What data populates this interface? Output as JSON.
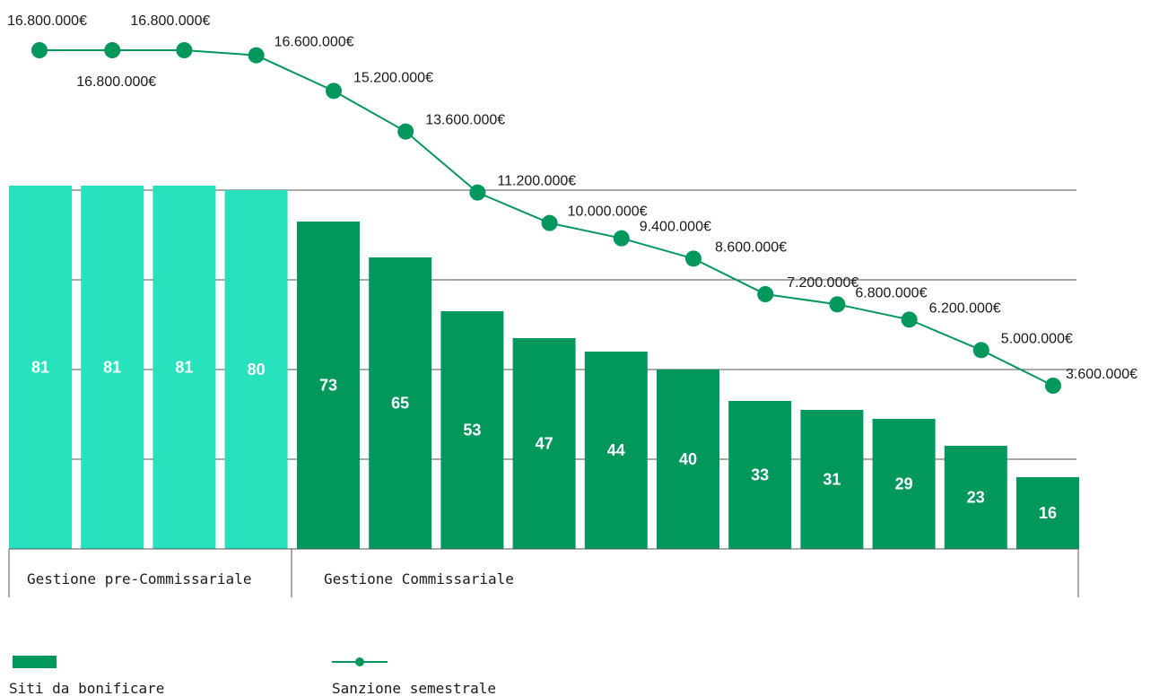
{
  "chart_data": {
    "type": "bar+line",
    "title": "",
    "xlabel": "",
    "ylabel": "",
    "grid": true,
    "bars": {
      "name": "Siti da bonificare",
      "values": [
        81,
        81,
        81,
        80,
        73,
        65,
        53,
        47,
        44,
        40,
        33,
        31,
        29,
        23,
        16
      ],
      "group_index": [
        0,
        0,
        0,
        0,
        1,
        1,
        1,
        1,
        1,
        1,
        1,
        1,
        1,
        1,
        1
      ],
      "ylim": [
        0,
        100
      ]
    },
    "line": {
      "name": "Sanzione semestrale",
      "values": [
        16800000,
        16800000,
        16800000,
        16600000,
        15200000,
        13600000,
        11200000,
        10000000,
        9400000,
        8600000,
        7200000,
        6800000,
        6200000,
        5000000,
        3600000
      ],
      "labels": [
        "16.800.000€",
        "16.800.000€",
        "16.800.000€",
        "16.600.000€",
        "15.200.000€",
        "13.600.000€",
        "11.200.000€",
        "10.000.000€",
        "9.400.000€",
        "8.600.000€",
        "7.200.000€",
        "6.800.000€",
        "6.200.000€",
        "5.000.000€",
        "3.600.000€"
      ]
    },
    "groups": [
      "Gestione pre-Commissariale",
      "Gestione Commissariale"
    ],
    "colors": {
      "bar_pre": "#28e2be",
      "bar_comm": "#02975c",
      "line": "#02975c",
      "grid": "#555555"
    },
    "legend": [
      {
        "label": "Siti da bonificare",
        "marker": "bar"
      },
      {
        "label": "Sanzione semestrale",
        "marker": "line"
      }
    ]
  }
}
